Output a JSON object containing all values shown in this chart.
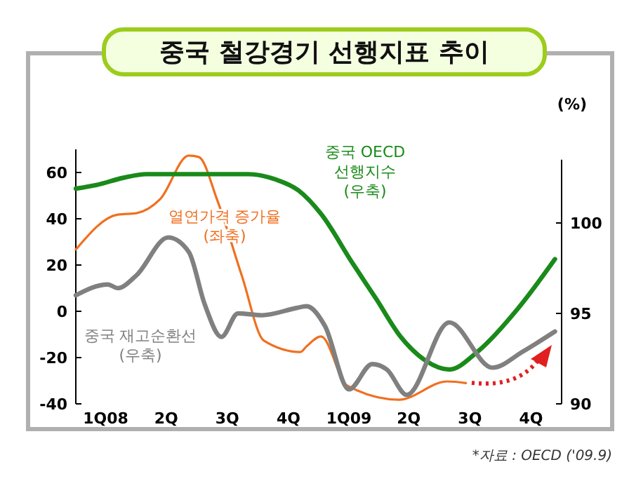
{
  "chart_data": {
    "type": "line",
    "title": "중국 철강경기 선행지표 추이",
    "y2label": "(%)",
    "xlim": [
      "2008-01-01",
      "2010-01-01"
    ],
    "xticks": [
      {
        "value": "2008-02-15",
        "label": "1Q08"
      },
      {
        "value": "2008-05-16",
        "label": "2Q"
      },
      {
        "value": "2008-08-16",
        "label": "3Q"
      },
      {
        "value": "2008-11-16",
        "label": "4Q"
      },
      {
        "value": "2009-02-15",
        "label": "1Q09"
      },
      {
        "value": "2009-05-16",
        "label": "2Q"
      },
      {
        "value": "2009-08-16",
        "label": "3Q"
      },
      {
        "value": "2009-11-16",
        "label": "4Q"
      }
    ],
    "ylim": [
      -40,
      70
    ],
    "yticks": [
      -40,
      -20,
      0,
      20,
      40,
      60
    ],
    "y2lim": [
      90,
      103.5
    ],
    "y2ticks": [
      90,
      95,
      100
    ],
    "grid": false,
    "line_style": "solid",
    "marker": "none",
    "series": [
      {
        "name": "열연가격 증가율\n(좌축)",
        "color": "#f07020",
        "x": [
          "2008-01-01",
          "2008-03-04",
          "2008-04-01",
          "2008-05-07",
          "2008-06-19",
          "2008-07-04",
          "2008-08-01",
          "2008-09-07",
          "2008-10-10",
          "2008-12-04",
          "2008-12-13",
          "2009-01-04",
          "2009-02-12",
          "2009-05-01",
          "2009-07-13",
          "2009-08-10"
        ],
        "values": [
          26.7,
          41.8,
          42.4,
          48.5,
          67.3,
          66.7,
          47.9,
          15.2,
          -12.7,
          -17.6,
          -15.2,
          -10.9,
          -32,
          -38.2,
          -30.3,
          -31
        ]
      },
      {
        "name": "중국 OECD\n선행지수\n(우축)",
        "color": "#1a8a1a",
        "axis": "y2",
        "x": [
          "2008-01-01",
          "2008-02-01",
          "2008-03-13",
          "2008-04-16",
          "2008-06-19",
          "2008-09-16",
          "2008-10-28",
          "2008-12-01",
          "2009-01-04",
          "2009-02-20",
          "2009-03-28",
          "2009-05-04",
          "2009-06-10",
          "2009-07-16",
          "2009-08-28",
          "2009-10-28",
          "2009-12-22"
        ],
        "values": [
          101.9,
          102.1,
          102.5,
          102.7,
          102.7,
          102.7,
          102.4,
          101.8,
          100.5,
          97.8,
          95.8,
          93.7,
          92.4,
          91.9,
          92.9,
          95.3,
          98.0
        ]
      },
      {
        "name": "중국 재고순환선\n(우축)",
        "color": "#808080",
        "axis": "y2",
        "x": [
          "2008-01-01",
          "2008-02-18",
          "2008-03-04",
          "2008-04-01",
          "2008-05-19",
          "2008-06-19",
          "2008-07-13",
          "2008-08-07",
          "2008-09-01",
          "2008-10-07",
          "2008-11-28",
          "2008-12-13",
          "2009-01-10",
          "2009-02-15",
          "2009-03-22",
          "2009-04-13",
          "2009-05-13",
          "2009-07-16",
          "2009-09-19",
          "2009-11-04",
          "2009-12-22"
        ],
        "values": [
          96.0,
          96.6,
          96.4,
          97.1,
          99.2,
          98.4,
          95.5,
          93.7,
          95.0,
          94.9,
          95.3,
          95.4,
          94.3,
          90.8,
          92.2,
          91.9,
          90.5,
          94.5,
          92.0,
          92.9,
          94.0
        ]
      }
    ],
    "annotations": [
      "*자료 : OECD ('09.9)"
    ]
  }
}
